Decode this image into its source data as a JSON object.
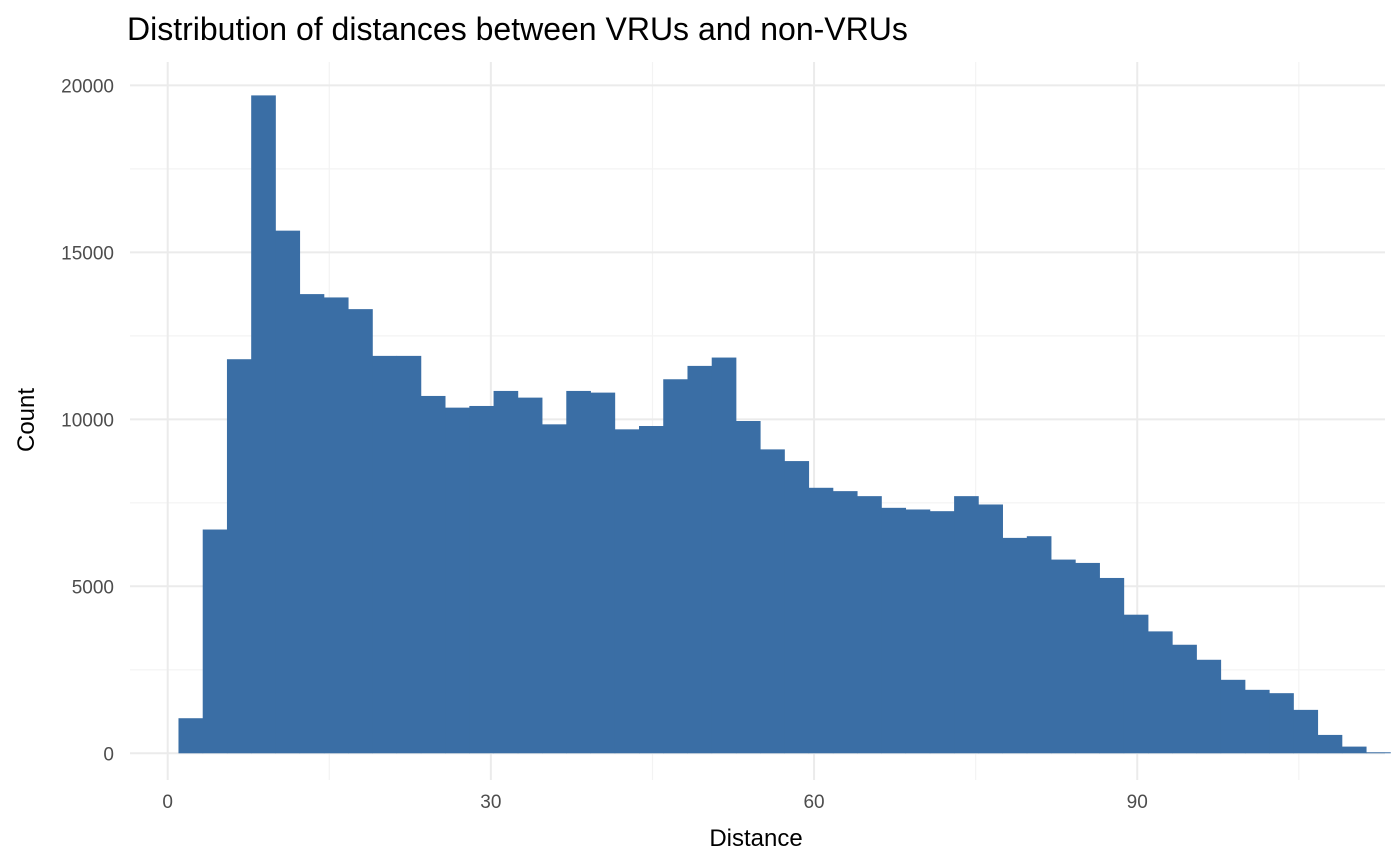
{
  "chart_data": {
    "type": "bar",
    "title": "Distribution of distances between VRUs and non-VRUs",
    "xlabel": "Distance",
    "ylabel": "Count",
    "xlim": [
      -3.5,
      113
    ],
    "ylim": [
      -800,
      20700
    ],
    "x_ticks": [
      0,
      30,
      60,
      90
    ],
    "x_minor_ticks": [
      15,
      45,
      75,
      105
    ],
    "y_ticks": [
      0,
      5000,
      10000,
      15000,
      20000
    ],
    "y_minor_ticks": [
      2500,
      7500,
      12500,
      17500
    ],
    "grid": true,
    "legend": "none",
    "bar_color": "#3a6ea5",
    "bin_start": 1.0,
    "bin_width": 2.25,
    "values": [
      1050,
      6700,
      11800,
      19700,
      15650,
      13750,
      13650,
      13300,
      11900,
      11900,
      10700,
      10350,
      10400,
      10850,
      10650,
      9850,
      10850,
      10800,
      9700,
      9800,
      11200,
      11600,
      11850,
      9950,
      9100,
      8750,
      7950,
      7850,
      7700,
      7350,
      7300,
      7250,
      7700,
      7450,
      6450,
      6500,
      5800,
      5700,
      5250,
      4150,
      3650,
      3250,
      2800,
      2200,
      1900,
      1800,
      1300,
      550,
      200,
      30
    ]
  }
}
